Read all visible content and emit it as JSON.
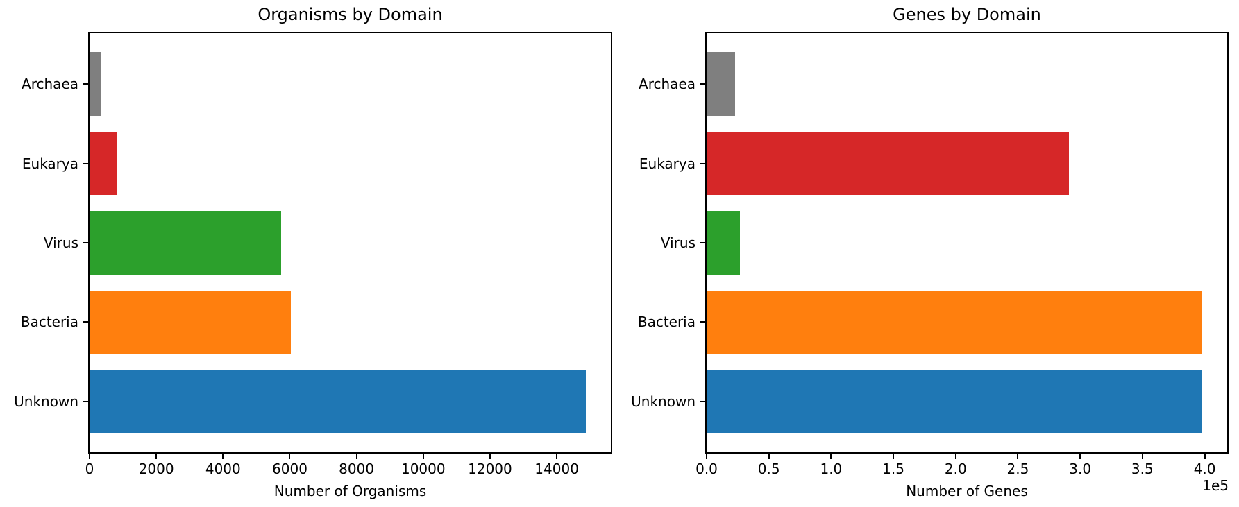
{
  "figure": {
    "background": "#ffffff",
    "text_color": "#000000",
    "spine_color": "#000000"
  },
  "palette": {
    "gray": "#7f7f7f",
    "red": "#d62728",
    "green": "#2ca02c",
    "orange": "#ff7f0e",
    "blue": "#1f77b4"
  },
  "chart_data": [
    {
      "type": "bar",
      "orientation": "horizontal",
      "title": "Organisms by Domain",
      "xlabel": "Number of Organisms",
      "ylabel": "",
      "categories": [
        "Archaea",
        "Eukarya",
        "Virus",
        "Bacteria",
        "Unknown"
      ],
      "values": [
        360,
        810,
        5750,
        6040,
        14870
      ],
      "colors": [
        "#7f7f7f",
        "#d62728",
        "#2ca02c",
        "#ff7f0e",
        "#1f77b4"
      ],
      "xlim": [
        0,
        15620
      ],
      "xticks": [
        0,
        2000,
        4000,
        6000,
        8000,
        10000,
        12000,
        14000
      ],
      "xtick_labels": [
        "0",
        "2000",
        "4000",
        "6000",
        "8000",
        "10000",
        "12000",
        "14000"
      ],
      "offset_label": null,
      "grid": false,
      "legend": null
    },
    {
      "type": "bar",
      "orientation": "horizontal",
      "title": "Genes by Domain",
      "xlabel": "Number of Genes",
      "ylabel": "",
      "categories": [
        "Archaea",
        "Eukarya",
        "Virus",
        "Bacteria",
        "Unknown"
      ],
      "values": [
        22700,
        291000,
        26900,
        398300,
        398300
      ],
      "colors": [
        "#7f7f7f",
        "#d62728",
        "#2ca02c",
        "#ff7f0e",
        "#1f77b4"
      ],
      "xlim": [
        0,
        418100
      ],
      "xticks": [
        0,
        50000,
        100000,
        150000,
        200000,
        250000,
        300000,
        350000,
        400000
      ],
      "xtick_labels": [
        "0.0",
        "0.5",
        "1.0",
        "1.5",
        "2.0",
        "2.5",
        "3.0",
        "3.5",
        "4.0"
      ],
      "offset_label": "1e5",
      "grid": false,
      "legend": null
    }
  ]
}
